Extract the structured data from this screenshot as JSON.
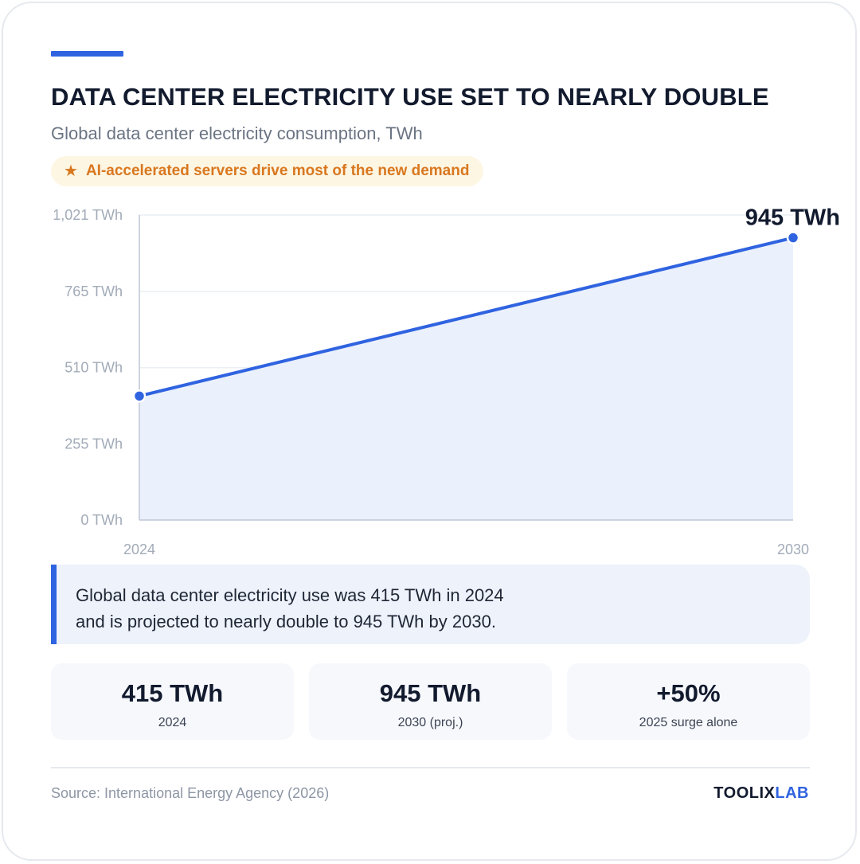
{
  "header": {
    "title": "DATA CENTER ELECTRICITY USE SET TO NEARLY DOUBLE",
    "subtitle": "Global data center electricity consumption, TWh",
    "badge": "AI-accelerated servers drive most of the new demand",
    "badge_icon": "star-icon"
  },
  "colors": {
    "accent": "#2f63e0",
    "badge": "#d9771f",
    "area_fill": "#eaf0fc"
  },
  "chart_data": {
    "type": "area",
    "x": [
      "2024",
      "2030"
    ],
    "series": [
      {
        "values": [
          415,
          945
        ]
      }
    ],
    "ylim": [
      0,
      1021
    ],
    "yticks": [
      {
        "value": 0,
        "label": "0 TWh"
      },
      {
        "value": 255,
        "label": "255 TWh"
      },
      {
        "value": 510,
        "label": "510 TWh"
      },
      {
        "value": 765,
        "label": "765 TWh"
      },
      {
        "value": 1021,
        "label": "1,021 TWh"
      }
    ],
    "annotations": [
      {
        "x": "2030",
        "text": "945 TWh"
      }
    ],
    "grid": true,
    "legend": "none"
  },
  "callout": {
    "line1": "Global data center electricity use was 415 TWh in 2024",
    "line2": "and is projected to nearly double to 945 TWh by 2030."
  },
  "stats": [
    {
      "value": "415 TWh",
      "label": "2024"
    },
    {
      "value": "945 TWh",
      "label": "2030 (proj.)"
    },
    {
      "value": "+50%",
      "label": "2025 surge alone"
    }
  ],
  "footer": {
    "source": "Source: International Energy Agency (2026)",
    "brand_part1": "TOOLIX",
    "brand_part2": "LAB"
  }
}
